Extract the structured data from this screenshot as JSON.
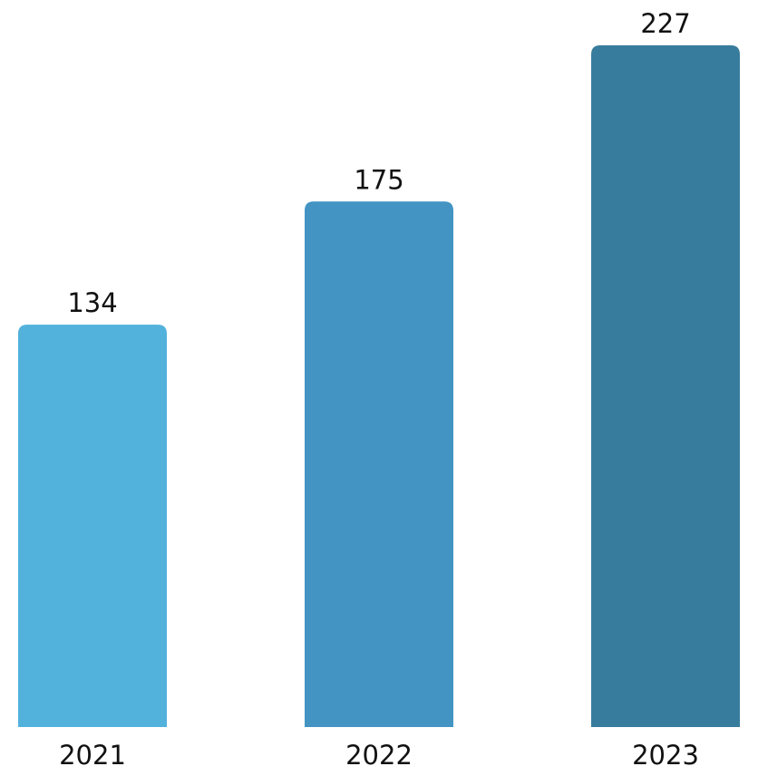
{
  "chart_data": {
    "type": "bar",
    "title": "",
    "xlabel": "",
    "ylabel": "",
    "categories": [
      "2021",
      "2022",
      "2023"
    ],
    "values": [
      134,
      175,
      227
    ],
    "data_labels": [
      "134",
      "175",
      "227"
    ],
    "colors": [
      "#52b2dc",
      "#4394c3",
      "#387c9d"
    ],
    "ylim": [
      0,
      227
    ],
    "grid": false,
    "legend": "none"
  }
}
